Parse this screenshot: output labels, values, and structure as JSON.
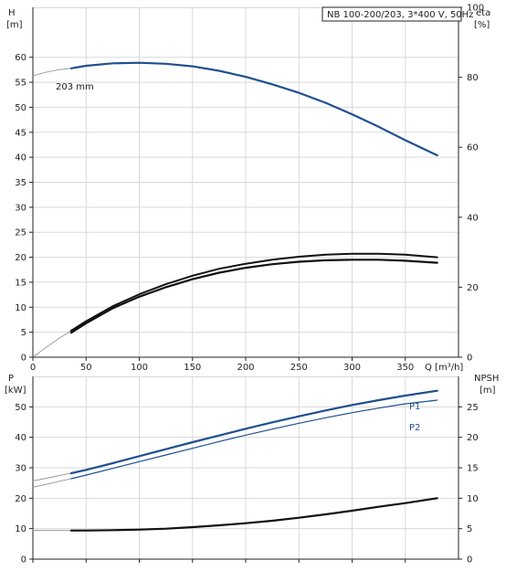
{
  "chart_data": [
    {
      "type": "line",
      "info_box": "NB 100-200/203, 3*400 V, 50Hz",
      "xlabel": "Q [m³/h]",
      "xlim": [
        0,
        400
      ],
      "x_ticks": [
        0,
        50,
        100,
        150,
        200,
        250,
        300,
        350
      ],
      "left_axis": {
        "label_line1": "H",
        "label_line2": "[m]",
        "ylim": [
          0,
          70
        ],
        "ticks": [
          0,
          5,
          10,
          15,
          20,
          25,
          30,
          35,
          40,
          45,
          50,
          55,
          60
        ]
      },
      "right_axis": {
        "label_line1": "eta",
        "label_line2": "[%]",
        "ylim": [
          0,
          100
        ],
        "ticks": [
          0,
          20,
          40,
          60,
          80,
          100
        ]
      },
      "grid": true,
      "series": [
        {
          "name": "203 mm",
          "axis": "left",
          "color": "#1f4f8f",
          "width": 2.2,
          "x": [
            36,
            50,
            75,
            100,
            125,
            150,
            175,
            200,
            225,
            250,
            275,
            300,
            325,
            350,
            380
          ],
          "y": [
            57.8,
            58.3,
            58.8,
            58.9,
            58.7,
            58.2,
            57.3,
            56.1,
            54.6,
            52.9,
            50.9,
            48.6,
            46.1,
            43.4,
            40.4
          ],
          "extension": {
            "x": [
              0,
              12,
              24,
              36
            ],
            "y": [
              56.3,
              57.0,
              57.5,
              57.8
            ]
          }
        },
        {
          "name": "",
          "axis": "left",
          "color": "#111111",
          "width": 2.0,
          "x": [
            36,
            50,
            75,
            100,
            125,
            150,
            175,
            200,
            225,
            250,
            275,
            300,
            325,
            350,
            380
          ],
          "y": [
            5.3,
            7.2,
            10.2,
            12.6,
            14.6,
            16.3,
            17.7,
            18.7,
            19.5,
            20.1,
            20.5,
            20.7,
            20.7,
            20.5,
            20.0
          ],
          "extension": {
            "x": [
              0,
              12,
              24,
              36
            ],
            "y": [
              0,
              1.9,
              3.7,
              5.3
            ]
          }
        },
        {
          "name": "",
          "axis": "left",
          "color": "#111111",
          "width": 2.2,
          "x": [
            36,
            50,
            75,
            100,
            125,
            150,
            175,
            200,
            225,
            250,
            275,
            300,
            325,
            350,
            380
          ],
          "y": [
            4.9,
            6.8,
            9.8,
            12.1,
            14.0,
            15.6,
            16.9,
            17.9,
            18.6,
            19.1,
            19.4,
            19.5,
            19.5,
            19.3,
            18.9
          ]
        }
      ]
    },
    {
      "type": "line",
      "xlim": [
        0,
        400
      ],
      "x_ticks": [
        0,
        50,
        100,
        150,
        200,
        250,
        300,
        350
      ],
      "left_axis": {
        "label_line1": "P",
        "label_line2": "[kW]",
        "ylim": [
          0,
          60
        ],
        "ticks": [
          0,
          10,
          20,
          30,
          40,
          50
        ]
      },
      "right_axis": {
        "label_line1": "NPSH",
        "label_line2": "[m]",
        "ylim": [
          0,
          30
        ],
        "ticks": [
          0,
          5,
          10,
          15,
          20,
          25
        ]
      },
      "grid": true,
      "series": [
        {
          "name": "P1",
          "axis": "left",
          "color": "#1f4f8f",
          "width": 2.2,
          "x": [
            36,
            50,
            75,
            100,
            125,
            150,
            175,
            200,
            225,
            250,
            275,
            300,
            325,
            350,
            380
          ],
          "y": [
            28.2,
            29.3,
            31.5,
            33.8,
            36.1,
            38.4,
            40.6,
            42.8,
            44.9,
            46.9,
            48.8,
            50.6,
            52.2,
            53.7,
            55.3
          ],
          "extension": {
            "x": [
              0,
              12,
              24,
              36
            ],
            "y": [
              25.7,
              26.5,
              27.4,
              28.2
            ]
          }
        },
        {
          "name": "P2",
          "axis": "left",
          "color": "#1f4f8f",
          "width": 1.2,
          "x": [
            36,
            50,
            75,
            100,
            125,
            150,
            175,
            200,
            225,
            250,
            275,
            300,
            325,
            350,
            380
          ],
          "y": [
            26.4,
            27.6,
            29.8,
            32.0,
            34.2,
            36.4,
            38.6,
            40.7,
            42.7,
            44.6,
            46.4,
            48.1,
            49.6,
            51.0,
            52.2
          ],
          "extension": {
            "x": [
              0,
              12,
              24,
              36
            ],
            "y": [
              23.6,
              24.5,
              25.5,
              26.4
            ]
          }
        },
        {
          "name": "",
          "axis": "right",
          "color": "#111111",
          "width": 2.2,
          "x": [
            36,
            50,
            75,
            100,
            125,
            150,
            175,
            200,
            225,
            250,
            275,
            300,
            325,
            350,
            380
          ],
          "y": [
            4.7,
            4.7,
            4.75,
            4.85,
            5.0,
            5.25,
            5.55,
            5.9,
            6.3,
            6.8,
            7.35,
            7.95,
            8.6,
            9.2,
            10.0
          ],
          "extension": {
            "x": [
              0,
              12,
              24,
              36
            ],
            "y": [
              4.7,
              4.7,
              4.7,
              4.7
            ]
          }
        }
      ]
    }
  ]
}
